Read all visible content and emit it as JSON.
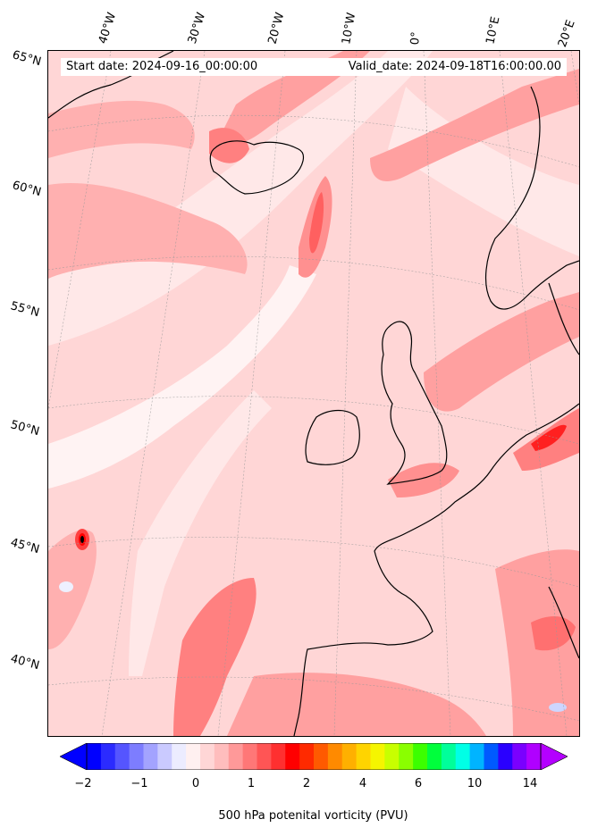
{
  "map": {
    "start_date": "Start date: 2024-09-16_00:00:00",
    "valid_date": "Valid_date: 2024-09-18T16:00:00.00",
    "lon_labels": [
      "40°W",
      "30°W",
      "20°W",
      "10°W",
      "0°",
      "10°E",
      "20°E"
    ],
    "lat_labels": [
      "65°N",
      "60°N",
      "55°N",
      "50°N",
      "45°N",
      "40°N"
    ],
    "field": "500 hPa potential vorticity",
    "coastline_color": "#000000"
  },
  "colorbar": {
    "label": "500 hPa potenital vorticity (PVU)",
    "ticks": [
      "−2",
      "−1",
      "0",
      "1",
      "2",
      "4",
      "6",
      "10",
      "14"
    ],
    "colors": [
      "#0000ff",
      "#2b2bff",
      "#5555ff",
      "#7d7dff",
      "#a3a3ff",
      "#cacaff",
      "#ececff",
      "#fff0f0",
      "#ffd6d6",
      "#ffbdbd",
      "#ff9999",
      "#ff7777",
      "#ff5555",
      "#ff3030",
      "#ff0000",
      "#ff2a00",
      "#ff5a00",
      "#ff8a00",
      "#ffb000",
      "#ffd400",
      "#f5f500",
      "#c8ff00",
      "#8aff00",
      "#3cff00",
      "#00ff3c",
      "#00ff9a",
      "#00ffe6",
      "#00b4ff",
      "#005aff",
      "#2a00ff",
      "#7a00ff",
      "#b000ff"
    ],
    "extend_low_color": "#0000ff",
    "extend_high_color": "#b400ff"
  }
}
